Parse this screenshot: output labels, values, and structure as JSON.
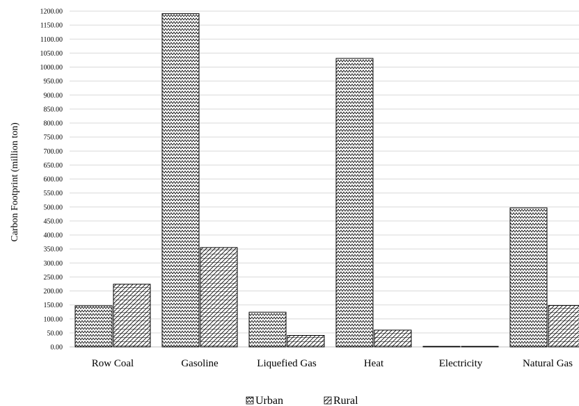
{
  "chart_data": {
    "type": "bar",
    "categories": [
      "Row Coal",
      "Gasoline",
      "Liquefied Gas",
      "Heat",
      "Electricity",
      "Natural Gas"
    ],
    "series": [
      {
        "name": "Urban",
        "values": [
          147,
          1191,
          124,
          1031,
          2,
          497
        ]
      },
      {
        "name": "Rural",
        "values": [
          224,
          355,
          41,
          60,
          2,
          148
        ]
      }
    ],
    "title": "",
    "xlabel": "",
    "ylabel": "Carbon Footprint (million ton)",
    "ylim": [
      0,
      1200
    ],
    "ytick_step": 50,
    "ytick_labels": [
      "0.00",
      "50.00",
      "100.00",
      "150.00",
      "200.00",
      "250.00",
      "300.00",
      "350.00",
      "400.00",
      "450.00",
      "500.00",
      "550.00",
      "600.00",
      "650.00",
      "700.00",
      "750.00",
      "800.00",
      "850.00",
      "900.00",
      "950.00",
      "1000.00",
      "1050.00",
      "1100.00",
      "1150.00",
      "1200.00"
    ],
    "grid": true,
    "legend": {
      "position": "bottom",
      "entries": [
        "Urban",
        "Rural"
      ]
    },
    "patterns": {
      "Urban": "zigzag",
      "Rural": "diagonal-stripes"
    }
  }
}
